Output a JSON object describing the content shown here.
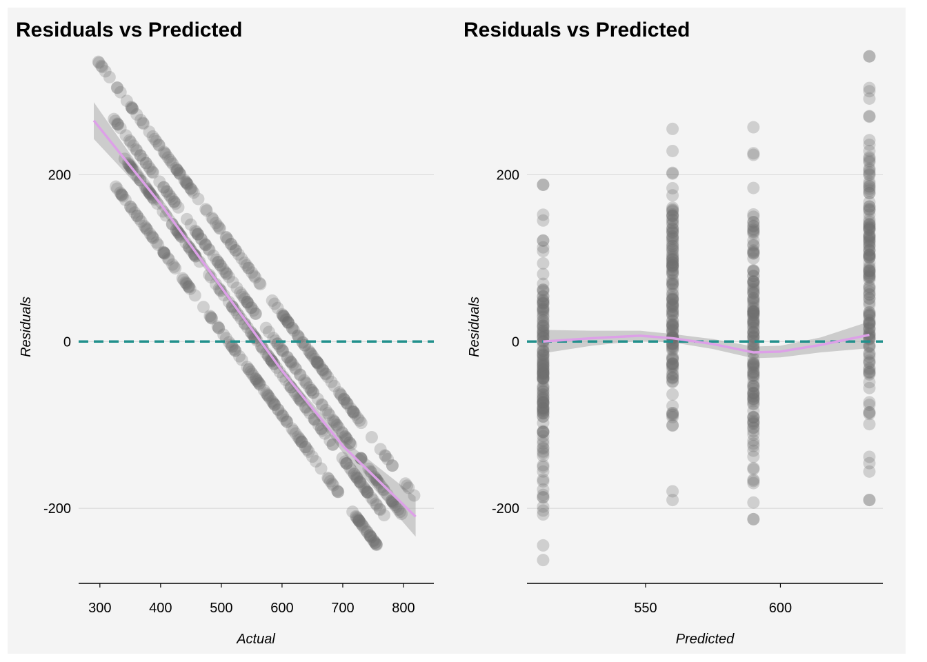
{
  "chart_data": [
    {
      "type": "scatter",
      "title": "Residuals vs Predicted",
      "xlabel": "Actual",
      "ylabel": "Residuals",
      "xlim": [
        265,
        850
      ],
      "ylim": [
        -290,
        355
      ],
      "xticks": [
        300,
        400,
        500,
        600,
        700,
        800
      ],
      "yticks": [
        -200,
        0,
        200
      ],
      "grid": "horizontal",
      "reference_line": {
        "y": 0,
        "style": "dashed",
        "color": "#21908c"
      },
      "smooth": {
        "color": "#dda0e8",
        "band_color": "#b0b0b0",
        "points": [
          [
            290,
            265
          ],
          [
            400,
            165
          ],
          [
            500,
            65
          ],
          [
            600,
            -35
          ],
          [
            700,
            -125
          ],
          [
            820,
            -210
          ]
        ],
        "band_halfwidth": [
          22,
          8,
          4,
          4,
          8,
          24
        ]
      },
      "points_color": "#6e6e6e",
      "series": [
        {
          "offset": 633,
          "x_range": [
            292,
            820
          ],
          "predicted": 633
        },
        {
          "offset": 590,
          "x_range": [
            320,
            800
          ],
          "predicted": 590
        },
        {
          "offset": 560,
          "x_range": [
            340,
            770
          ],
          "predicted": 560
        },
        {
          "offset": 512,
          "x_range": [
            325,
            770
          ],
          "predicted": 512
        }
      ]
    },
    {
      "type": "scatter",
      "title": "Residuals vs Predicted",
      "xlabel": "Predicted",
      "ylabel": "Residuals",
      "xlim": [
        506,
        638
      ],
      "ylim": [
        -290,
        355
      ],
      "xticks": [
        550,
        600
      ],
      "yticks": [
        -200,
        0,
        200
      ],
      "grid": "horizontal",
      "reference_line": {
        "y": 0,
        "style": "dashed",
        "color": "#21908c"
      },
      "smooth": {
        "color": "#dda0e8",
        "band_color": "#b0b0b0",
        "points": [
          [
            512,
            0
          ],
          [
            530,
            4
          ],
          [
            548,
            7
          ],
          [
            560,
            4
          ],
          [
            575,
            -3
          ],
          [
            590,
            -13
          ],
          [
            600,
            -12
          ],
          [
            615,
            -4
          ],
          [
            633,
            8
          ]
        ],
        "band_halfwidth": [
          14,
          9,
          6,
          5,
          6,
          7,
          7,
          9,
          16
        ]
      },
      "points_color": "#6e6e6e",
      "columns": [
        {
          "x": 512,
          "y_range": [
            -262,
            188
          ]
        },
        {
          "x": 560,
          "y_range": [
            -190,
            255
          ]
        },
        {
          "x": 590,
          "y_range": [
            -213,
            257
          ]
        },
        {
          "x": 633,
          "y_range": [
            -190,
            342
          ]
        }
      ]
    }
  ]
}
